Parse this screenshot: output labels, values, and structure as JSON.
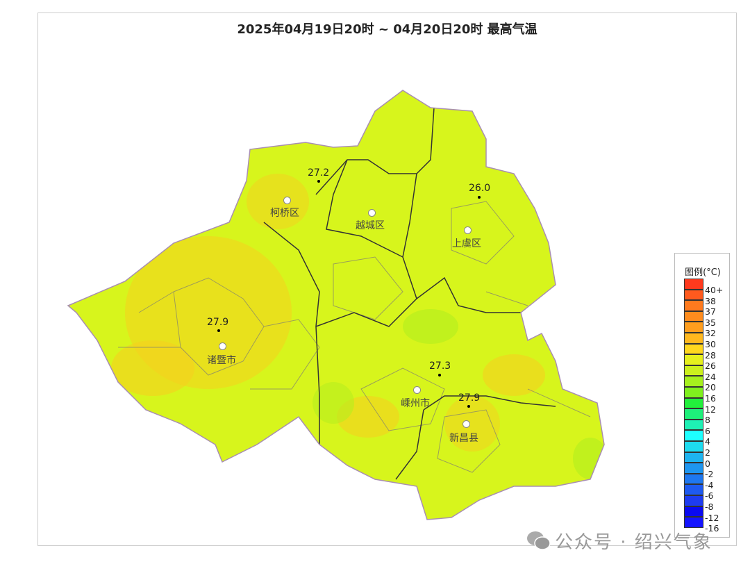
{
  "title": "2025年04月19日20时 ~ 04月20日20时 最高气温",
  "legend": {
    "title": "图例(°C)",
    "colors": [
      "#ff3a1e",
      "#ff5a1e",
      "#ff7a1e",
      "#ff8c1e",
      "#ff9e1e",
      "#ffb81e",
      "#ffd71e",
      "#e6f01e",
      "#ccf01e",
      "#a6f01e",
      "#80f01e",
      "#22f03c",
      "#1ef07a",
      "#1ef0b4",
      "#1effff",
      "#1edcf0",
      "#1eb4f0",
      "#1e96f0",
      "#1e78f0",
      "#1e5af0",
      "#1e3cf0",
      "#0a0af0",
      "#1414ff"
    ],
    "labels": [
      "40+",
      "38",
      "37",
      "35",
      "32",
      "30",
      "28",
      "26",
      "24",
      "20",
      "16",
      "12",
      "8",
      "6",
      "4",
      "2",
      "0",
      "-2",
      "-4",
      "-6",
      "-8",
      "-12",
      "-16"
    ]
  },
  "stations": [
    {
      "value": "27.2"
    },
    {
      "value": "26.0"
    },
    {
      "value": "27.9"
    },
    {
      "value": "27.3"
    },
    {
      "value": "27.9"
    }
  ],
  "cities": [
    {
      "name": "柯桥区"
    },
    {
      "name": "越城区"
    },
    {
      "name": "上虞区"
    },
    {
      "name": "诸暨市"
    },
    {
      "name": "嵊州市"
    },
    {
      "name": "新昌县"
    }
  ],
  "watermark": "公众号 · 绍兴气象"
}
